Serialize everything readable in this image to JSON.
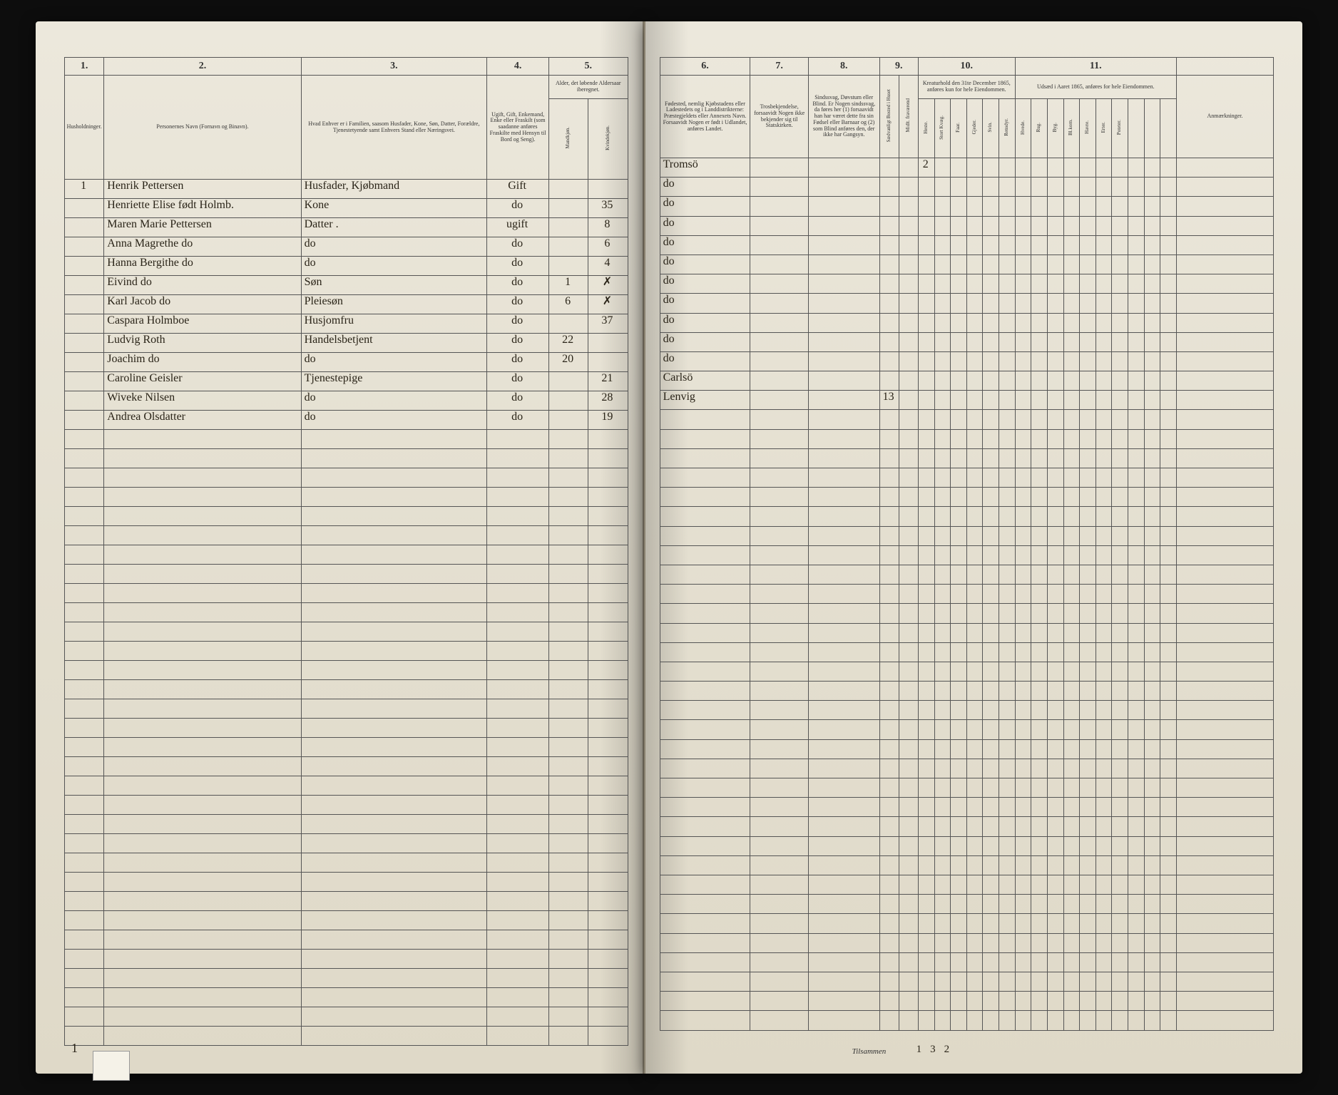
{
  "left": {
    "colnums": [
      "1.",
      "2.",
      "3.",
      "4.",
      "5."
    ],
    "headers": {
      "c1": "Husholdninger.",
      "c2": "Personernes Navn (Fornavn og Binavn).",
      "c3": "Hvad Enhver er i Familien, saasom Husfader, Kone, Søn, Datter, Forældre, Tjenestetyende samt Enhvers Stand eller Næringsvei.",
      "c4": "Ugift, Gift, Enkemand, Enke eller Fraskilt (som saadanne anføres Fraskilte med Hensyn til Bord og Seng).",
      "c5a": "Alder, det løbende Aldersaar iberegnet.",
      "c5b": "Mandkjøn.",
      "c5c": "Kvindekjøn."
    }
  },
  "right": {
    "colnums": [
      "6.",
      "7.",
      "8.",
      "9.",
      "10.",
      "11."
    ],
    "headers": {
      "c6": "Fødested, nemlig Kjøbstadens eller Ladestedets og i Landdistrikterne: Præstegjeldets eller Annexets Navn. Forsaavidt Nogen er født i Udlandet, anføres Landet.",
      "c7": "Trosbekjendelse, forsaavidt Nogen ikke bekjender sig til Statskirken.",
      "c8": "Sindssvag, Døvstum eller Blind. Er Nogen sindssvag, da føres her (1) forsaavidt han har været dette fra sin Fødsel eller Barnaar og (2) som Blind anføres den, der ikke har Gangsyn.",
      "c9a": "Sædvanligt Bosted i Huset",
      "c9b": "Midlt. fraværend",
      "c10": "Kreaturhold den 31te December 1865, anføres kun for hele Eiendommen.",
      "c10cols": [
        "Heste.",
        "Stort Kvæg.",
        "Faar.",
        "Gjeder.",
        "Svin.",
        "Rensdyr."
      ],
      "c11": "Udsæd i Aaret 1865, anføres for hele Eiendommen.",
      "c11cols": [
        "Hvede.",
        "Rug.",
        "Byg.",
        "Bl.korn.",
        "Havre.",
        "Erter.",
        "Poteter."
      ],
      "c12": "Anmærkninger."
    },
    "footer_label": "Tilsammen",
    "footer_vals": [
      "13",
      "2"
    ]
  },
  "rows": [
    {
      "n": "1",
      "name": "Henrik Pettersen",
      "rel": "Husfader, Kjøbmand",
      "stat": "Gift",
      "m": "",
      "f": "",
      "birth": "Tromsö",
      "c10": "2"
    },
    {
      "n": "",
      "name": "Henriette Elise født Holmb.",
      "rel": "Kone",
      "stat": "do",
      "m": "",
      "f": "35",
      "birth": "do",
      "c10": ""
    },
    {
      "n": "",
      "name": "Maren Marie Pettersen",
      "rel": "Datter  .",
      "stat": "ugift",
      "m": "",
      "f": "8",
      "birth": "do",
      "c10": ""
    },
    {
      "n": "",
      "name": "Anna Magrethe   do",
      "rel": "do",
      "stat": "do",
      "m": "",
      "f": "6",
      "birth": "do",
      "c10": ""
    },
    {
      "n": "",
      "name": "Hanna Bergithe  do",
      "rel": "do",
      "stat": "do",
      "m": "",
      "f": "4",
      "birth": "do",
      "c10": ""
    },
    {
      "n": "",
      "name": "Eivind          do",
      "rel": "Søn",
      "stat": "do",
      "m": "1",
      "f": "✗",
      "birth": "do",
      "c10": ""
    },
    {
      "n": "",
      "name": "Karl Jacob      do",
      "rel": "Pleiesøn",
      "stat": "do",
      "m": "6",
      "f": "✗",
      "birth": "do",
      "c10": ""
    },
    {
      "n": "",
      "name": "Caspara Holmboe",
      "rel": "Husjomfru",
      "stat": "do",
      "m": "",
      "f": "37",
      "birth": "do",
      "c10": ""
    },
    {
      "n": "",
      "name": "Ludvig Roth",
      "rel": "Handelsbetjent",
      "stat": "do",
      "m": "22",
      "f": "",
      "birth": "do",
      "c10": ""
    },
    {
      "n": "",
      "name": "Joachim   do",
      "rel": "do",
      "stat": "do",
      "m": "20",
      "f": "",
      "birth": "do",
      "c10": ""
    },
    {
      "n": "",
      "name": "Caroline Geisler",
      "rel": "Tjenestepige",
      "stat": "do",
      "m": "",
      "f": "21",
      "birth": "do",
      "c10": ""
    },
    {
      "n": "",
      "name": "Wiveke Nilsen",
      "rel": "do",
      "stat": "do",
      "m": "",
      "f": "28",
      "birth": "Carlsö",
      "c10": ""
    },
    {
      "n": "",
      "name": "Andrea Olsdatter",
      "rel": "do",
      "stat": "do",
      "m": "",
      "f": "19",
      "birth": "Lenvig",
      "c10": "",
      "c9": "13"
    }
  ],
  "blank_rows": 32,
  "footer_left_total": "1"
}
